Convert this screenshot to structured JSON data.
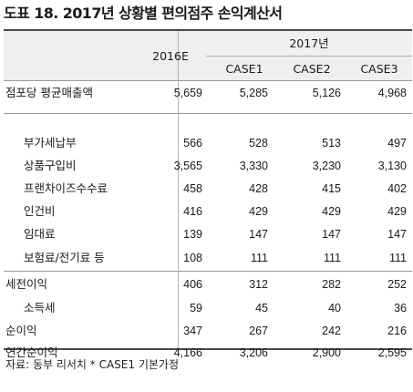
{
  "title": "도표 18. 2017년 상황별 편의점주 손익계산서",
  "header": {
    "col_2016": "2016E",
    "year_2017": "2017년",
    "cases": [
      "CASE1",
      "CASE2",
      "CASE3"
    ]
  },
  "rows": [
    {
      "label": "점포당 평균매출액",
      "v2016": "5,659",
      "c1": "5,285",
      "c2": "5,126",
      "c3": "4,968",
      "indent": false
    },
    {
      "label": "부가세납부",
      "v2016": "566",
      "c1": "528",
      "c2": "513",
      "c3": "497",
      "indent": true
    },
    {
      "label": "상품구입비",
      "v2016": "3,565",
      "c1": "3,330",
      "c2": "3,230",
      "c3": "3,130",
      "indent": true
    },
    {
      "label": "프랜차이즈수수료",
      "v2016": "458",
      "c1": "428",
      "c2": "415",
      "c3": "402",
      "indent": true
    },
    {
      "label": "인건비",
      "v2016": "416",
      "c1": "429",
      "c2": "429",
      "c3": "429",
      "indent": true
    },
    {
      "label": "임대료",
      "v2016": "139",
      "c1": "147",
      "c2": "147",
      "c3": "147",
      "indent": true
    },
    {
      "label": "보험료/전기료 등",
      "v2016": "108",
      "c1": "111",
      "c2": "111",
      "c3": "111",
      "indent": true
    },
    {
      "label": "세전이익",
      "v2016": "406",
      "c1": "312",
      "c2": "282",
      "c3": "252",
      "indent": false
    },
    {
      "label": "소득세",
      "v2016": "59",
      "c1": "45",
      "c2": "40",
      "c3": "36",
      "indent": true
    },
    {
      "label": "순이익",
      "v2016": "347",
      "c1": "267",
      "c2": "242",
      "c3": "216",
      "indent": false
    },
    {
      "label": "연간순이익",
      "v2016": "4,166",
      "c1": "3,206",
      "c2": "2,900",
      "c3": "2,595",
      "indent": false
    }
  ],
  "source": "자료: 동부 리서치  * CASE1 기본가정"
}
